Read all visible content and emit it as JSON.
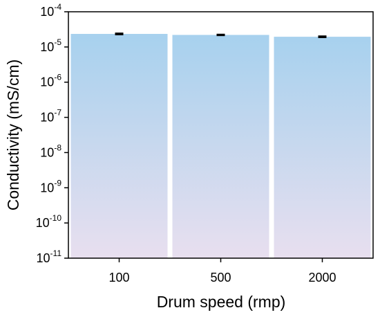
{
  "chart_data": {
    "type": "bar",
    "title": "",
    "xlabel": "Drum speed (rmp)",
    "ylabel": "Conductivity (mS/cm)",
    "categories": [
      "100",
      "500",
      "2000"
    ],
    "values": [
      2.35e-05,
      2.2e-05,
      1.95e-05
    ],
    "errors": [
      1e-06,
      7e-07,
      8e-07
    ],
    "yscale": "log",
    "ylim": [
      1e-11,
      0.0001
    ],
    "ytick_base": "10",
    "ytick_exponents": [
      "-11",
      "-10",
      "-9",
      "-8",
      "-7",
      "-6",
      "-5",
      "-4"
    ],
    "grid": false,
    "bar_gradient": [
      "#a7d1ee",
      "#e8dfef"
    ],
    "error_color": "#000000"
  }
}
